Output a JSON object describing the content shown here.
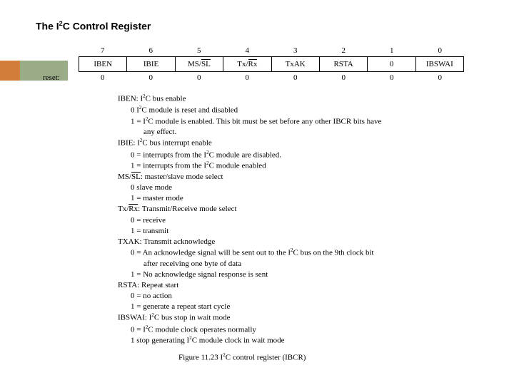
{
  "title_pre": "The I",
  "title_sup": "2",
  "title_post": "C Control Register",
  "bit_numbers": [
    "7",
    "6",
    "5",
    "4",
    "3",
    "2",
    "1",
    "0"
  ],
  "reg_fields": {
    "b7": "IBEN",
    "b6": "IBIE",
    "b5_pre": "MS/",
    "b5_ovl": "SL",
    "b4_pre": "Tx/",
    "b4_ovl": "Rx",
    "b3": "TxAK",
    "b2": "RSTA",
    "b1": "0",
    "b0": "IBSWAI"
  },
  "reset_label": "reset:",
  "reset_values": [
    "0",
    "0",
    "0",
    "0",
    "0",
    "0",
    "0",
    "0"
  ],
  "desc": {
    "l1a": "IBEN: I",
    "l1b": "C bus enable",
    "l2a": "0    I",
    "l2b": "C module is reset and disabled",
    "l3a": "1 = I",
    "l3b": "C module is enabled. This bit must be set before any other IBCR bits have",
    "l3c": "any effect.",
    "l4a": "IBIE: I",
    "l4b": "C bus interrupt enable",
    "l5a": "0 = interrupts from the I",
    "l5b": "C module are disabled.",
    "l6a": "1 = interrupts from the I",
    "l6b": "C module enabled",
    "l7": "MS/",
    "l7o": "SL",
    "l7b": ": master/slave mode select",
    "l8": "0    slave mode",
    "l9": "1 = master mode",
    "l10": "Tx/",
    "l10o": "Rx",
    "l10b": ": Transmit/Receive mode select",
    "l11": "0 = receive",
    "l12": "1 = transmit",
    "l13": "TXAK: Transmit acknowledge",
    "l14a": "0 = An acknowledge signal will be sent out to the I",
    "l14b": "C bus on the 9th clock bit",
    "l14c": "after receiving one byte of data",
    "l15": "1 = No acknowledge signal response is sent",
    "l16": "RSTA: Repeat start",
    "l17": "0 = no action",
    "l18": "1 = generate a repeat start cycle",
    "l19a": "IBSWAI: I",
    "l19b": "C bus stop in wait mode",
    "l20a": "0 = I",
    "l20b": "C module clock operates normally",
    "l21a": "1    stop generating I",
    "l21b": "C module clock in wait mode"
  },
  "caption_a": "Figure 11.23 I",
  "caption_b": "C control register (IBCR)",
  "colors": {
    "orange": "#d27d3a",
    "green": "#9aab87"
  }
}
